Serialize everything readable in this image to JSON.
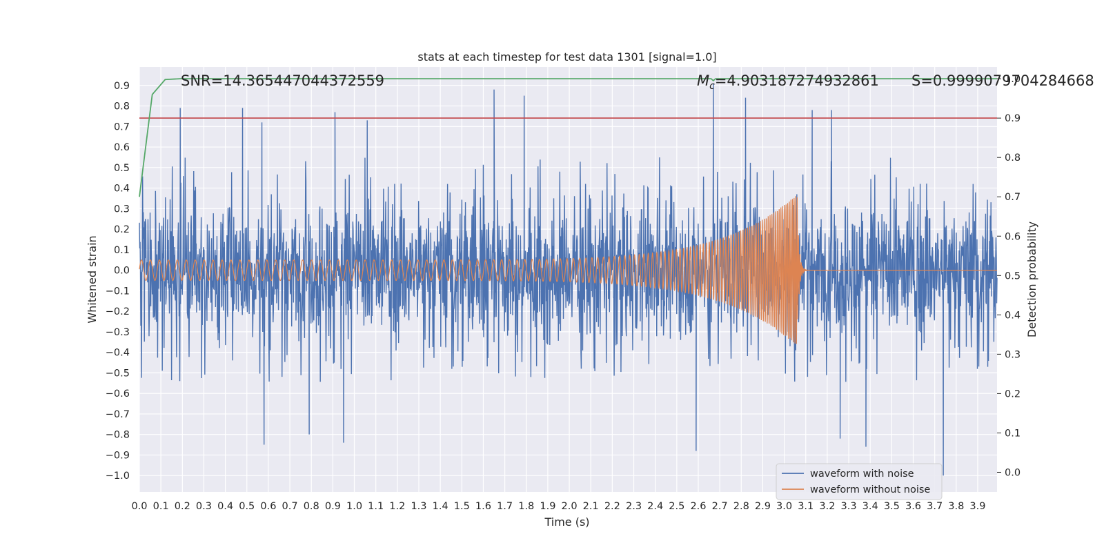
{
  "chart_data": {
    "type": "line",
    "title": "stats at each timestep for test data 1301 [signal=1.0]",
    "xlabel": "Time (s)",
    "ylabel": "Whitened strain",
    "y2label": "Detection probability",
    "xlim": [
      0,
      3.99
    ],
    "ylim": [
      -1.08,
      0.99
    ],
    "y2lim": [
      -0.05,
      1.03
    ],
    "xticks": [
      0.0,
      0.1,
      0.2,
      0.3,
      0.4,
      0.5,
      0.6,
      0.7,
      0.8,
      0.9,
      1.0,
      1.1,
      1.2,
      1.3,
      1.4,
      1.5,
      1.6,
      1.7,
      1.8,
      1.9,
      2.0,
      2.1,
      2.2,
      2.3,
      2.4,
      2.5,
      2.6,
      2.7,
      2.8,
      2.9,
      3.0,
      3.1,
      3.2,
      3.3,
      3.4,
      3.5,
      3.6,
      3.7,
      3.8,
      3.9
    ],
    "xtick_labels": [
      "0.0",
      "0.1",
      "0.2",
      "0.3",
      "0.4",
      "0.5",
      "0.6",
      "0.7",
      "0.8",
      "0.9",
      "1.0",
      "1.1",
      "1.2",
      "1.3",
      "1.4",
      "1.5",
      "1.6",
      "1.7",
      "1.8",
      "1.9",
      "2.0",
      "2.1",
      "2.2",
      "2.3",
      "2.4",
      "2.5",
      "2.6",
      "2.7",
      "2.8",
      "2.9",
      "3.0",
      "3.1",
      "3.2",
      "3.3",
      "3.4",
      "3.5",
      "3.6",
      "3.7",
      "3.8",
      "3.9"
    ],
    "yticks": [
      0.9,
      0.8,
      0.7,
      0.6,
      0.5,
      0.4,
      0.3,
      0.2,
      0.1,
      0.0,
      -0.1,
      -0.2,
      -0.3,
      -0.4,
      -0.5,
      -0.6,
      -0.7,
      -0.8,
      -0.9,
      -1.0
    ],
    "ytick_labels": [
      "0.9",
      "0.8",
      "0.7",
      "0.6",
      "0.5",
      "0.4",
      "0.3",
      "0.2",
      "0.1",
      "0.0",
      "−0.1",
      "−0.2",
      "−0.3",
      "−0.4",
      "−0.5",
      "−0.6",
      "−0.7",
      "−0.8",
      "−0.9",
      "−1.0"
    ],
    "y2ticks": [
      1.0,
      0.9,
      0.8,
      0.7,
      0.6,
      0.5,
      0.4,
      0.3,
      0.2,
      0.1,
      0.0
    ],
    "y2tick_labels": [
      "1.0",
      "0.9",
      "0.8",
      "0.7",
      "0.6",
      "0.5",
      "0.4",
      "0.3",
      "0.2",
      "0.1",
      "0.0"
    ],
    "grid": true,
    "threshold": {
      "value": 0.9,
      "axis": "y2",
      "color": "#c44e52"
    },
    "snr_label": "SNR=14.365447044372559",
    "mc_label_symbol": "M",
    "mc_label_sub": "c",
    "mc_label_value": "=4.903187274932861",
    "s_label": "S=0.9999079704284668",
    "legend": {
      "placement": "lower-right",
      "entries": [
        "waveform with noise",
        "waveform without noise"
      ]
    },
    "series": [
      {
        "name": "waveform with noise",
        "color": "#4c72b0",
        "kind": "noise",
        "typical_range": [
          -0.45,
          0.5
        ],
        "peaks": [
          {
            "t": 0.19,
            "v": 0.79
          },
          {
            "t": 0.48,
            "v": 0.79
          },
          {
            "t": 0.57,
            "v": 0.72
          },
          {
            "t": 0.91,
            "v": 0.77
          },
          {
            "t": 1.06,
            "v": 0.73
          },
          {
            "t": 1.65,
            "v": 0.88
          },
          {
            "t": 1.79,
            "v": 0.85
          },
          {
            "t": 2.67,
            "v": 0.91
          },
          {
            "t": 2.82,
            "v": 0.84
          },
          {
            "t": 3.13,
            "v": 0.78
          },
          {
            "t": 3.22,
            "v": 0.78
          },
          {
            "t": 0.58,
            "v": -0.85
          },
          {
            "t": 0.79,
            "v": -0.8
          },
          {
            "t": 0.95,
            "v": -0.84
          },
          {
            "t": 2.59,
            "v": -0.88
          },
          {
            "t": 3.38,
            "v": -0.86
          },
          {
            "t": 3.74,
            "v": -1.0
          },
          {
            "t": 3.26,
            "v": -0.82
          }
        ]
      },
      {
        "name": "waveform without noise",
        "color": "#dd8452",
        "kind": "chirp",
        "base_amplitude": 0.05,
        "peak_amplitude": 0.37,
        "merger_time": 3.06,
        "start_frequency": 24,
        "end_frequency": 140
      },
      {
        "name": "detection probability",
        "color": "#55a868",
        "axis": "y2",
        "x": [
          0.0,
          0.06,
          0.12,
          0.19,
          0.4,
          1.0,
          2.0,
          2.66,
          2.67,
          2.68,
          3.0,
          3.99
        ],
        "values": [
          0.7,
          0.96,
          0.998,
          1.0,
          1.0,
          1.0,
          1.0,
          1.0,
          0.995,
          1.0,
          1.0,
          1.0
        ]
      }
    ]
  }
}
